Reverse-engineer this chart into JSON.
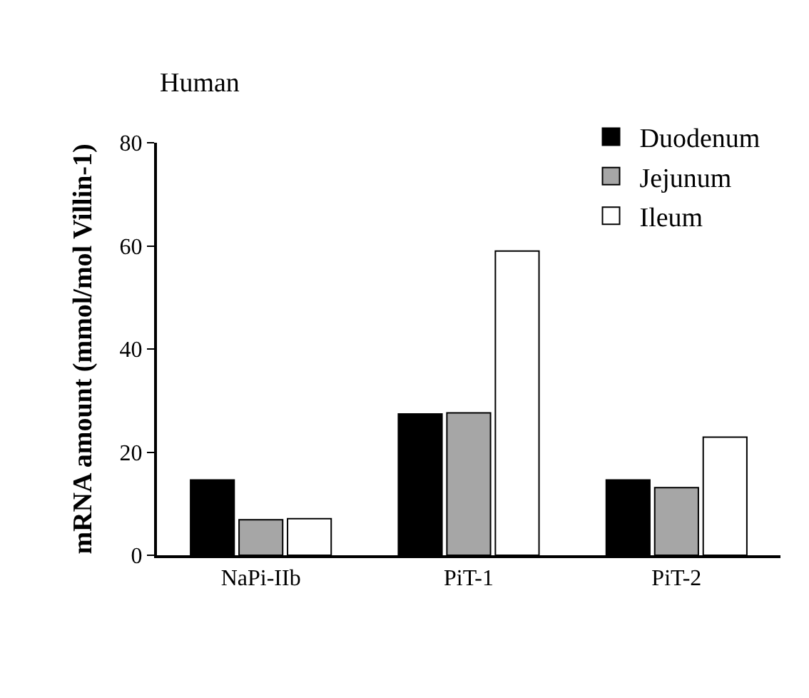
{
  "chart_data": {
    "type": "bar",
    "title": "Human",
    "ylabel": "mRNA amount (mmol/mol Villin-1)",
    "categories": [
      "NaPi-IIb",
      "PiT-1",
      "PiT-2"
    ],
    "series": [
      {
        "name": "Duodenum",
        "color": "#000000",
        "values": [
          14.6,
          27.4,
          14.6
        ]
      },
      {
        "name": "Jejunum",
        "color": "#a6a6a6",
        "values": [
          6.9,
          27.6,
          13.1
        ]
      },
      {
        "name": "Ileum",
        "color": "#ffffff",
        "values": [
          7.1,
          59.0,
          22.9
        ]
      }
    ],
    "ylim": [
      0,
      80
    ],
    "yticks": [
      0,
      20,
      40,
      60,
      80
    ],
    "grid": false,
    "legend": "top right"
  }
}
